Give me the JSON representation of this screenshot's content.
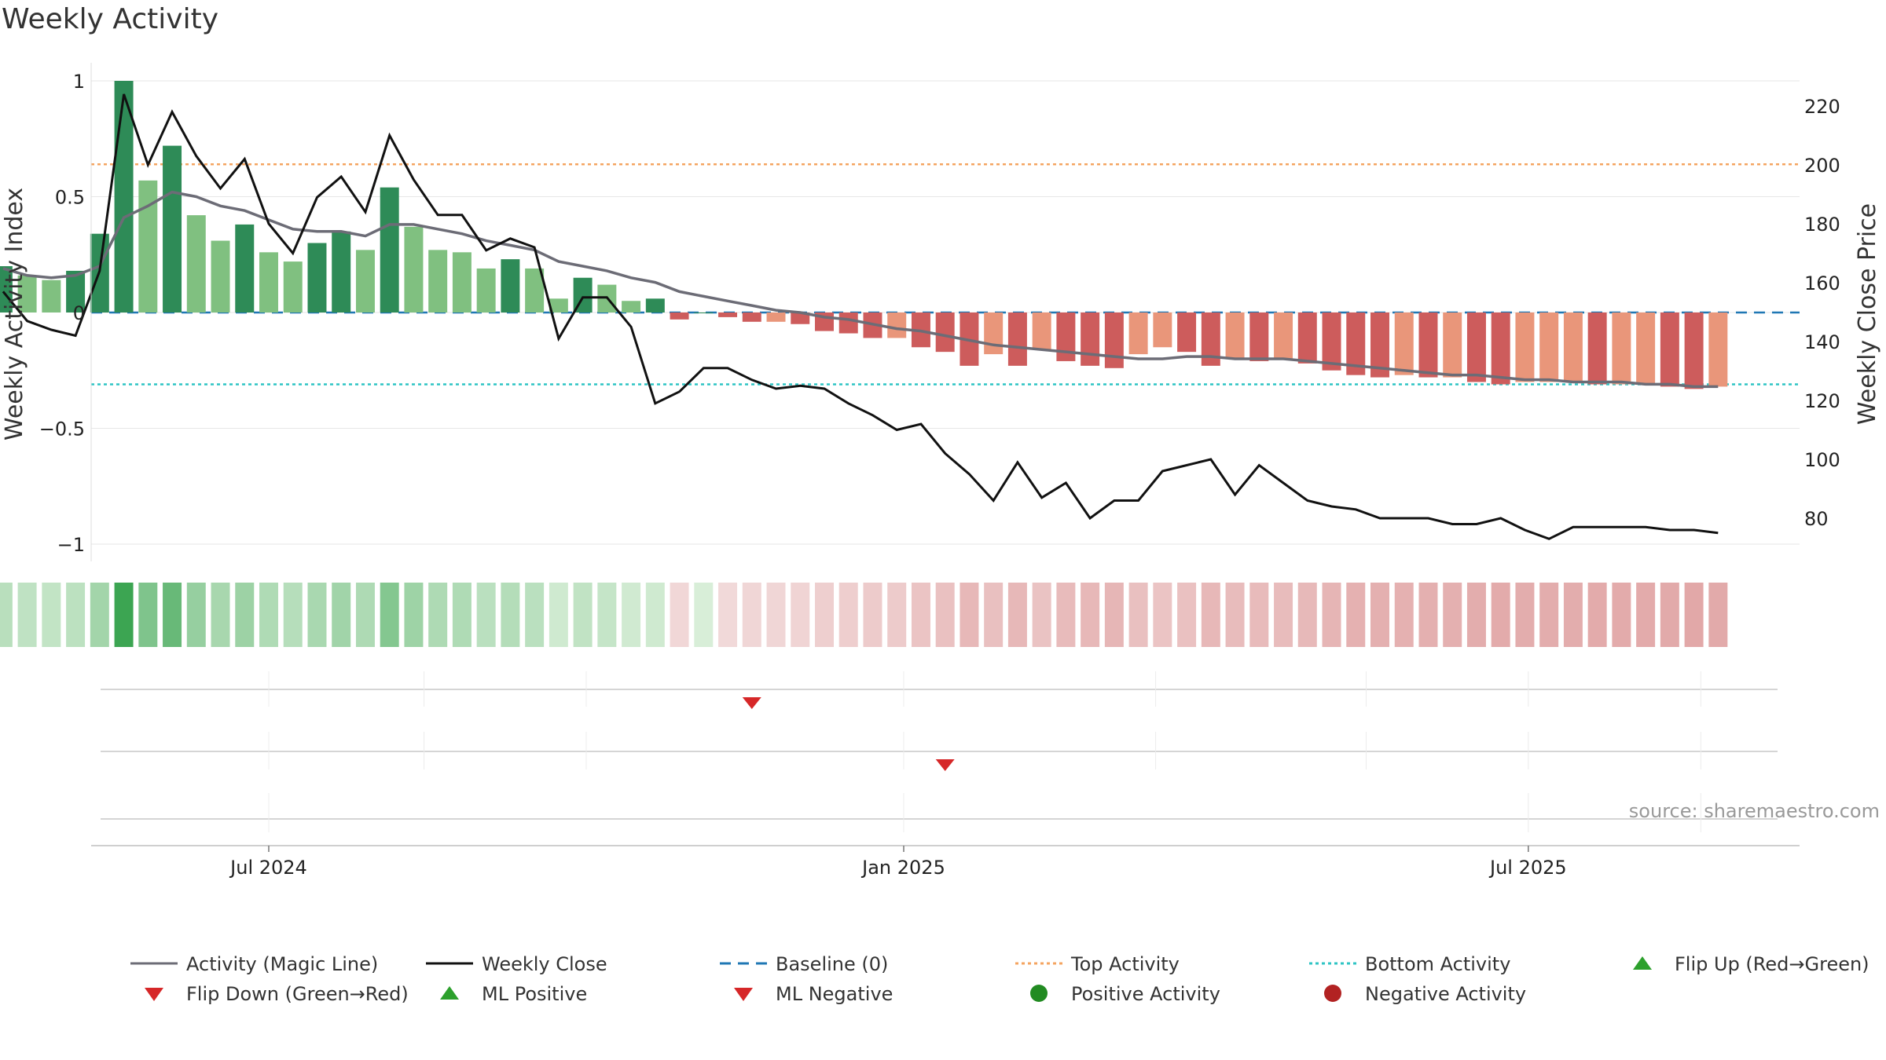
{
  "title": "Weekly Activity",
  "source": "source: sharemaestro.com",
  "chart_data": {
    "type": "bar",
    "title": "Weekly Activity",
    "ylabel_left": "Weekly Activity Index",
    "ylabel_right": "Weekly Close Price",
    "ylim_left": [
      -1.1,
      1.1
    ],
    "ylim_right": [
      70,
      230
    ],
    "yticks_left": [
      1,
      0.5,
      0,
      -0.5,
      -1
    ],
    "yticks_left_labels": [
      "1",
      "0.5",
      "0",
      "−0.5",
      "−1"
    ],
    "yticks_right": [
      220,
      200,
      180,
      160,
      140,
      120,
      100,
      80
    ],
    "xticks": [
      {
        "date": "2024-07-01",
        "label": "Jul 2024"
      },
      {
        "date": "2025-01-01",
        "label": "Jan 2025"
      },
      {
        "date": "2025-07-01",
        "label": "Jul 2025"
      }
    ],
    "dates": [
      "2024-04-15",
      "2024-04-22",
      "2024-04-29",
      "2024-05-06",
      "2024-05-13",
      "2024-05-20",
      "2024-05-27",
      "2024-06-03",
      "2024-06-10",
      "2024-06-17",
      "2024-06-24",
      "2024-07-01",
      "2024-07-08",
      "2024-07-15",
      "2024-07-22",
      "2024-07-29",
      "2024-08-05",
      "2024-08-12",
      "2024-08-19",
      "2024-08-26",
      "2024-09-02",
      "2024-09-09",
      "2024-09-16",
      "2024-09-23",
      "2024-09-30",
      "2024-10-07",
      "2024-10-14",
      "2024-10-21",
      "2024-10-28",
      "2024-11-04",
      "2024-11-11",
      "2024-11-18",
      "2024-11-25",
      "2024-12-02",
      "2024-12-09",
      "2024-12-16",
      "2024-12-23",
      "2024-12-30",
      "2025-01-06",
      "2025-01-13",
      "2025-01-20",
      "2025-01-27",
      "2025-02-03",
      "2025-02-10",
      "2025-02-17",
      "2025-02-24",
      "2025-03-03",
      "2025-03-10",
      "2025-03-17",
      "2025-03-24",
      "2025-03-31",
      "2025-04-07",
      "2025-04-14",
      "2025-04-21",
      "2025-04-28",
      "2025-05-05",
      "2025-05-12",
      "2025-05-19",
      "2025-05-26",
      "2025-06-02",
      "2025-06-09",
      "2025-06-16",
      "2025-06-23",
      "2025-06-30",
      "2025-07-07",
      "2025-07-14",
      "2025-07-21",
      "2025-07-28",
      "2025-08-04",
      "2025-08-11",
      "2025-08-18",
      "2025-08-25"
    ],
    "activity": [
      0.2,
      0.16,
      0.14,
      0.18,
      0.34,
      1.0,
      0.57,
      0.72,
      0.42,
      0.31,
      0.38,
      0.26,
      0.22,
      0.3,
      0.35,
      0.27,
      0.54,
      0.37,
      0.27,
      0.26,
      0.19,
      0.23,
      0.19,
      0.06,
      0.15,
      0.12,
      0.05,
      0.06,
      -0.03,
      0.0,
      -0.02,
      -0.04,
      -0.04,
      -0.05,
      -0.08,
      -0.09,
      -0.11,
      -0.11,
      -0.15,
      -0.17,
      -0.23,
      -0.18,
      -0.23,
      -0.16,
      -0.21,
      -0.23,
      -0.24,
      -0.18,
      -0.15,
      -0.17,
      -0.23,
      -0.2,
      -0.21,
      -0.2,
      -0.22,
      -0.25,
      -0.27,
      -0.28,
      -0.27,
      -0.28,
      -0.28,
      -0.3,
      -0.31,
      -0.3,
      -0.3,
      -0.3,
      -0.31,
      -0.31,
      -0.31,
      -0.32,
      -0.33,
      -0.32
    ],
    "magic_line": [
      0.19,
      0.16,
      0.15,
      0.16,
      0.2,
      0.41,
      0.46,
      0.52,
      0.5,
      0.46,
      0.44,
      0.4,
      0.36,
      0.35,
      0.35,
      0.33,
      0.38,
      0.38,
      0.36,
      0.34,
      0.31,
      0.29,
      0.27,
      0.22,
      0.2,
      0.18,
      0.15,
      0.13,
      0.09,
      0.07,
      0.05,
      0.03,
      0.01,
      0.0,
      -0.02,
      -0.03,
      -0.05,
      -0.07,
      -0.08,
      -0.1,
      -0.12,
      -0.14,
      -0.15,
      -0.16,
      -0.17,
      -0.18,
      -0.19,
      -0.2,
      -0.2,
      -0.19,
      -0.19,
      -0.2,
      -0.2,
      -0.2,
      -0.21,
      -0.22,
      -0.23,
      -0.24,
      -0.25,
      -0.26,
      -0.27,
      -0.27,
      -0.28,
      -0.29,
      -0.29,
      -0.3,
      -0.3,
      -0.3,
      -0.31,
      -0.31,
      -0.32,
      -0.32
    ],
    "weekly_close": [
      157,
      147,
      144,
      142,
      164,
      224,
      200,
      218,
      203,
      192,
      202,
      180,
      170,
      189,
      196,
      184,
      210,
      195,
      183,
      183,
      171,
      175,
      172,
      141,
      155,
      155,
      145,
      119,
      123,
      131,
      131,
      127,
      124,
      125,
      124,
      119,
      115,
      110,
      112,
      102,
      95,
      86,
      99,
      87,
      92,
      80,
      86,
      86,
      96,
      98,
      100,
      88,
      98,
      92,
      86,
      84,
      83,
      80,
      80,
      80,
      78,
      78,
      80,
      76,
      73,
      77,
      77,
      77,
      77,
      76,
      76,
      75
    ],
    "baseline": 0,
    "top_activity": 0.64,
    "bottom_activity": -0.31,
    "flip_down_markers": [
      "2024-11-18",
      "2025-01-13"
    ],
    "colors": {
      "strong_green": "#2e8b57",
      "light_green": "#80c080",
      "strong_red": "#cd5c5c",
      "light_red": "#e9967a",
      "magic_line": "#6c6c76",
      "close_line": "#111111",
      "baseline": "#1f77b4",
      "top": "#f4a460",
      "bottom": "#2ec4c4",
      "flip_marker": "#d62728"
    },
    "legend_placement": "bottom",
    "legend": [
      {
        "label": "Activity (Magic Line)",
        "kind": "line",
        "color": "#6c6c76",
        "dash": ""
      },
      {
        "label": "Weekly Close",
        "kind": "line",
        "color": "#111111",
        "dash": ""
      },
      {
        "label": "Baseline (0)",
        "kind": "line",
        "color": "#1f77b4",
        "dash": "14,9"
      },
      {
        "label": "Top Activity",
        "kind": "line",
        "color": "#f4a460",
        "dash": "4,4"
      },
      {
        "label": "Bottom Activity",
        "kind": "line",
        "color": "#2ec4c4",
        "dash": "4,4"
      },
      {
        "label": "Flip Up (Red→Green)",
        "kind": "up",
        "color": "#2ca02c"
      },
      {
        "label": "Flip Down (Green→Red)",
        "kind": "down",
        "color": "#d62728"
      },
      {
        "label": "ML Positive",
        "kind": "up",
        "color": "#2ca02c"
      },
      {
        "label": "ML Negative",
        "kind": "down",
        "color": "#d62728"
      },
      {
        "label": "Positive Activity",
        "kind": "dot",
        "color": "#228b22"
      },
      {
        "label": "Negative Activity",
        "kind": "dot",
        "color": "#b22222"
      }
    ]
  }
}
